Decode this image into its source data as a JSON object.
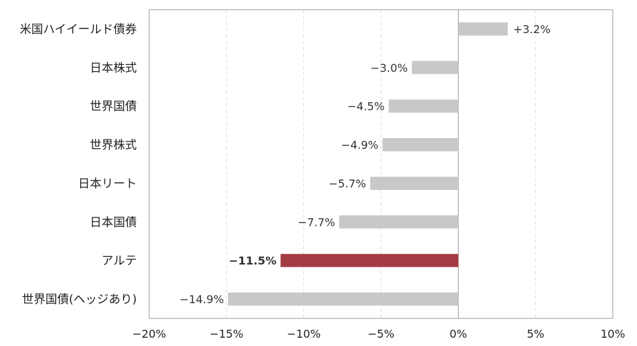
{
  "chart_data": {
    "type": "bar",
    "orientation": "horizontal",
    "categories": [
      "米国ハイイールド債券",
      "日本株式",
      "世界国債",
      "世界株式",
      "日本リート",
      "日本国債",
      "アルテ",
      "世界国債(ヘッジあり)"
    ],
    "values": [
      3.2,
      -3.0,
      -4.5,
      -4.9,
      -5.7,
      -7.7,
      -11.5,
      -14.9
    ],
    "value_labels": [
      "+3.2%",
      "−3.0%",
      "−4.5%",
      "−4.9%",
      "−5.7%",
      "−7.7%",
      "−11.5%",
      "−14.9%"
    ],
    "highlight_index": 6,
    "colors": {
      "default": "#c8c8c8",
      "highlight": "#a43c44",
      "highlight_label": "#a43c44",
      "grid": "#dddddd",
      "frame": "#9a9a9a",
      "zero_line": "#9a9a9a"
    },
    "xlim": [
      -20,
      10
    ],
    "x_ticks": [
      -20,
      -15,
      -10,
      -5,
      0,
      5,
      10
    ],
    "x_tick_labels": [
      "−20%",
      "−15%",
      "−10%",
      "−5%",
      "0%",
      "5%",
      "10%"
    ],
    "grid": "vertical dashed",
    "title": "",
    "xlabel": "",
    "ylabel": ""
  }
}
